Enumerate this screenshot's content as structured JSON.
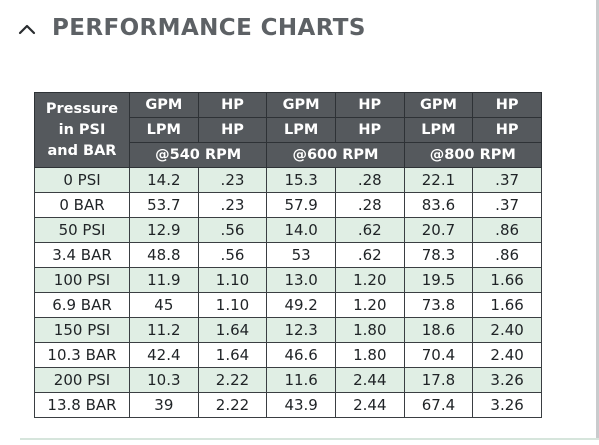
{
  "header": {
    "title": "PERFORMANCE CHARTS",
    "toggle_icon": "chevron-up-icon"
  },
  "table": {
    "pressure_header": [
      "Pressure",
      "in PSI",
      "and BAR"
    ],
    "unit_row_1": [
      "GPM",
      "HP",
      "GPM",
      "HP",
      "GPM",
      "HP"
    ],
    "unit_row_2": [
      "LPM",
      "HP",
      "LPM",
      "HP",
      "LPM",
      "HP"
    ],
    "rpm_groups": [
      "@540 RPM",
      "@600 RPM",
      "@800 RPM"
    ],
    "rows": [
      {
        "pressure": "0 PSI",
        "values": [
          "14.2",
          ".23",
          "15.3",
          ".28",
          "22.1",
          ".37"
        ]
      },
      {
        "pressure": "0 BAR",
        "values": [
          "53.7",
          ".23",
          "57.9",
          ".28",
          "83.6",
          ".37"
        ]
      },
      {
        "pressure": "50 PSI",
        "values": [
          "12.9",
          ".56",
          "14.0",
          ".62",
          "20.7",
          ".86"
        ]
      },
      {
        "pressure": "3.4 BAR",
        "values": [
          "48.8",
          ".56",
          "53",
          ".62",
          "78.3",
          ".86"
        ]
      },
      {
        "pressure": "100 PSI",
        "values": [
          "11.9",
          "1.10",
          "13.0",
          "1.20",
          "19.5",
          "1.66"
        ]
      },
      {
        "pressure": "6.9 BAR",
        "values": [
          "45",
          "1.10",
          "49.2",
          "1.20",
          "73.8",
          "1.66"
        ]
      },
      {
        "pressure": "150 PSI",
        "values": [
          "11.2",
          "1.64",
          "12.3",
          "1.80",
          "18.6",
          "2.40"
        ]
      },
      {
        "pressure": "10.3 BAR",
        "values": [
          "42.4",
          "1.64",
          "46.6",
          "1.80",
          "70.4",
          "2.40"
        ]
      },
      {
        "pressure": "200 PSI",
        "values": [
          "10.3",
          "2.22",
          "11.6",
          "2.44",
          "17.8",
          "3.26"
        ]
      },
      {
        "pressure": "13.8 BAR",
        "values": [
          "39",
          "2.22",
          "43.9",
          "2.44",
          "67.4",
          "3.26"
        ]
      }
    ]
  },
  "colors": {
    "title_text": "#5d6165",
    "header_bg": "#55595d",
    "psi_row_bg": "#e0eee4",
    "bar_row_bg": "#ffffff"
  }
}
